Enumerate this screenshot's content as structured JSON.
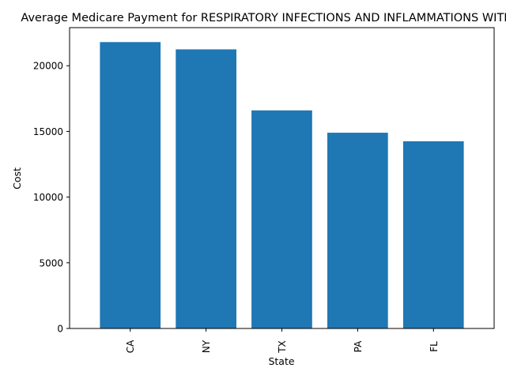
{
  "chart_data": {
    "type": "bar",
    "title": "Average Medicare Payment for RESPIRATORY INFECTIONS AND INFLAMMATIONS WITH MCC",
    "xlabel": "State",
    "ylabel": "Cost",
    "categories": [
      "CA",
      "NY",
      "TX",
      "PA",
      "FL"
    ],
    "values": [
      21800,
      21250,
      16600,
      14900,
      14250
    ],
    "ylim": [
      0,
      22900
    ],
    "yticks": [
      0,
      5000,
      10000,
      15000,
      20000
    ],
    "ytick_labels": [
      "0",
      "5000",
      "10000",
      "15000",
      "20000"
    ],
    "bar_color": "#1f77b4",
    "grid": false,
    "legend": false
  }
}
